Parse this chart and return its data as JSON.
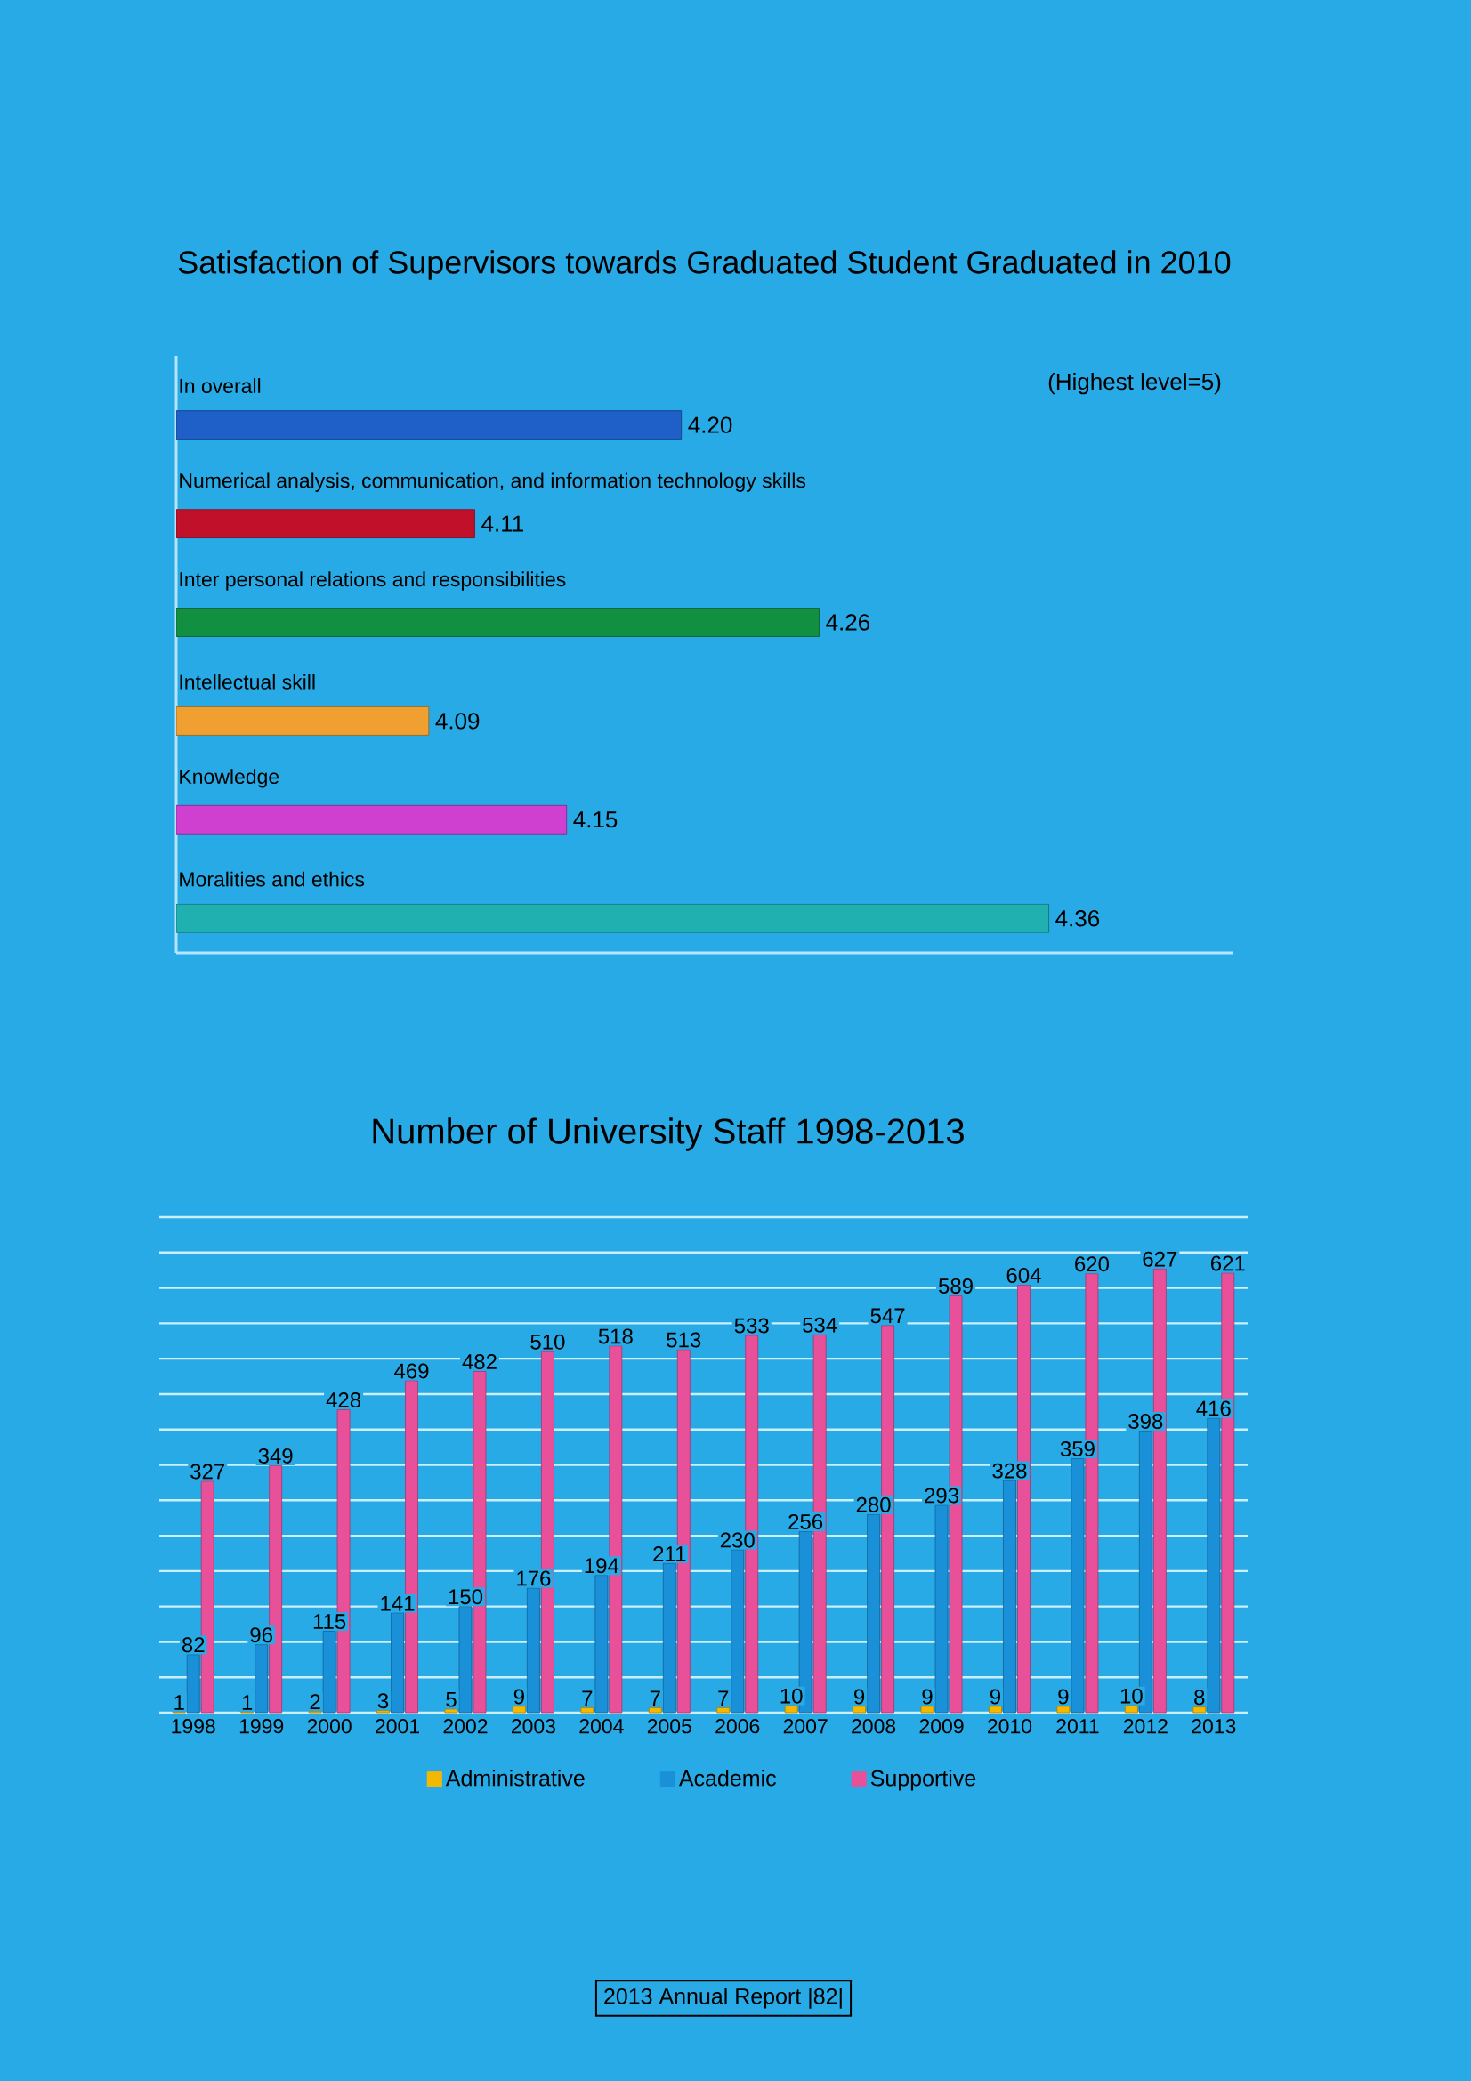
{
  "chart_data": [
    {
      "type": "bar",
      "orientation": "horizontal",
      "title": "Satisfaction of Supervisors towards Graduated Student Graduated in 2010",
      "categories": [
        "In overall",
        "Numerical analysis, communication, and information technology skills",
        "Inter personal relations and responsibilities",
        "Intellectual skill",
        "Knowledge",
        "Moralities and ethics"
      ],
      "values": [
        4.2,
        4.11,
        4.26,
        4.09,
        4.15,
        4.36
      ],
      "value_labels": [
        "4.20",
        "4.11",
        "4.26",
        "4.09",
        "4.15",
        "4.36"
      ],
      "colors": [
        "#1f5fc8",
        "#c0102a",
        "#109040",
        "#f0a030",
        "#d040d0",
        "#20b0b0"
      ],
      "xlim": [
        3.98,
        4.44
      ],
      "tick_labels": "y",
      "annotations": [
        "(Highest level=5)"
      ]
    },
    {
      "type": "bar",
      "title": "Number of University Staff 1998-2013",
      "categories": [
        "1998",
        "1999",
        "2000",
        "2001",
        "2002",
        "2003",
        "2004",
        "2005",
        "2006",
        "2007",
        "2008",
        "2009",
        "2010",
        "2011",
        "2012",
        "2013"
      ],
      "series": [
        {
          "name": "Administrative",
          "color": "#f5b800",
          "values": [
            1,
            1,
            2,
            3,
            5,
            9,
            7,
            7,
            7,
            10,
            9,
            9,
            9,
            9,
            10,
            8
          ]
        },
        {
          "name": "Academic",
          "color": "#1a90d8",
          "values": [
            82,
            96,
            115,
            141,
            150,
            176,
            194,
            211,
            230,
            256,
            280,
            293,
            328,
            359,
            398,
            416
          ]
        },
        {
          "name": "Supportive",
          "color": "#e8509a",
          "values": [
            327,
            349,
            428,
            469,
            482,
            510,
            518,
            513,
            533,
            534,
            547,
            589,
            604,
            620,
            627,
            621
          ]
        }
      ],
      "ylim": [
        0,
        700
      ],
      "yticks": [
        {
          "value": 0,
          "label": null
        },
        {
          "value": 50,
          "label": null
        },
        {
          "value": 100,
          "label": null
        },
        {
          "value": 150,
          "label": null
        },
        {
          "value": 200,
          "label": null
        },
        {
          "value": 250,
          "label": null
        },
        {
          "value": 300,
          "label": null
        },
        {
          "value": 350,
          "label": null
        },
        {
          "value": 400,
          "label": null
        },
        {
          "value": 450,
          "label": null
        },
        {
          "value": 500,
          "label": null
        },
        {
          "value": 550,
          "label": null
        },
        {
          "value": 600,
          "label": null
        },
        {
          "value": 650,
          "label": null
        },
        {
          "value": 700,
          "label": null
        }
      ],
      "grid": "y",
      "data_labels": true,
      "legend": "bottom",
      "tick_labels": "x",
      "annotations": [
        "2013 Annual Report |82|"
      ]
    }
  ]
}
